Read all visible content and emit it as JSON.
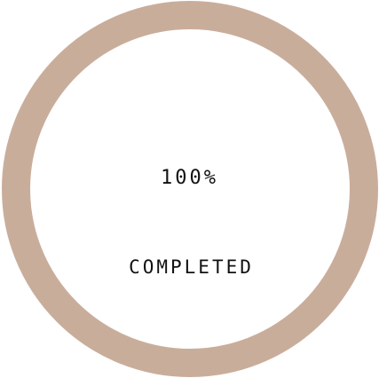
{
  "progress": {
    "value": 1.0,
    "percent_label": "100%",
    "status_label": "COMPLETED",
    "ring_color": "#c9ad9b",
    "background_color": "#ffffff"
  }
}
